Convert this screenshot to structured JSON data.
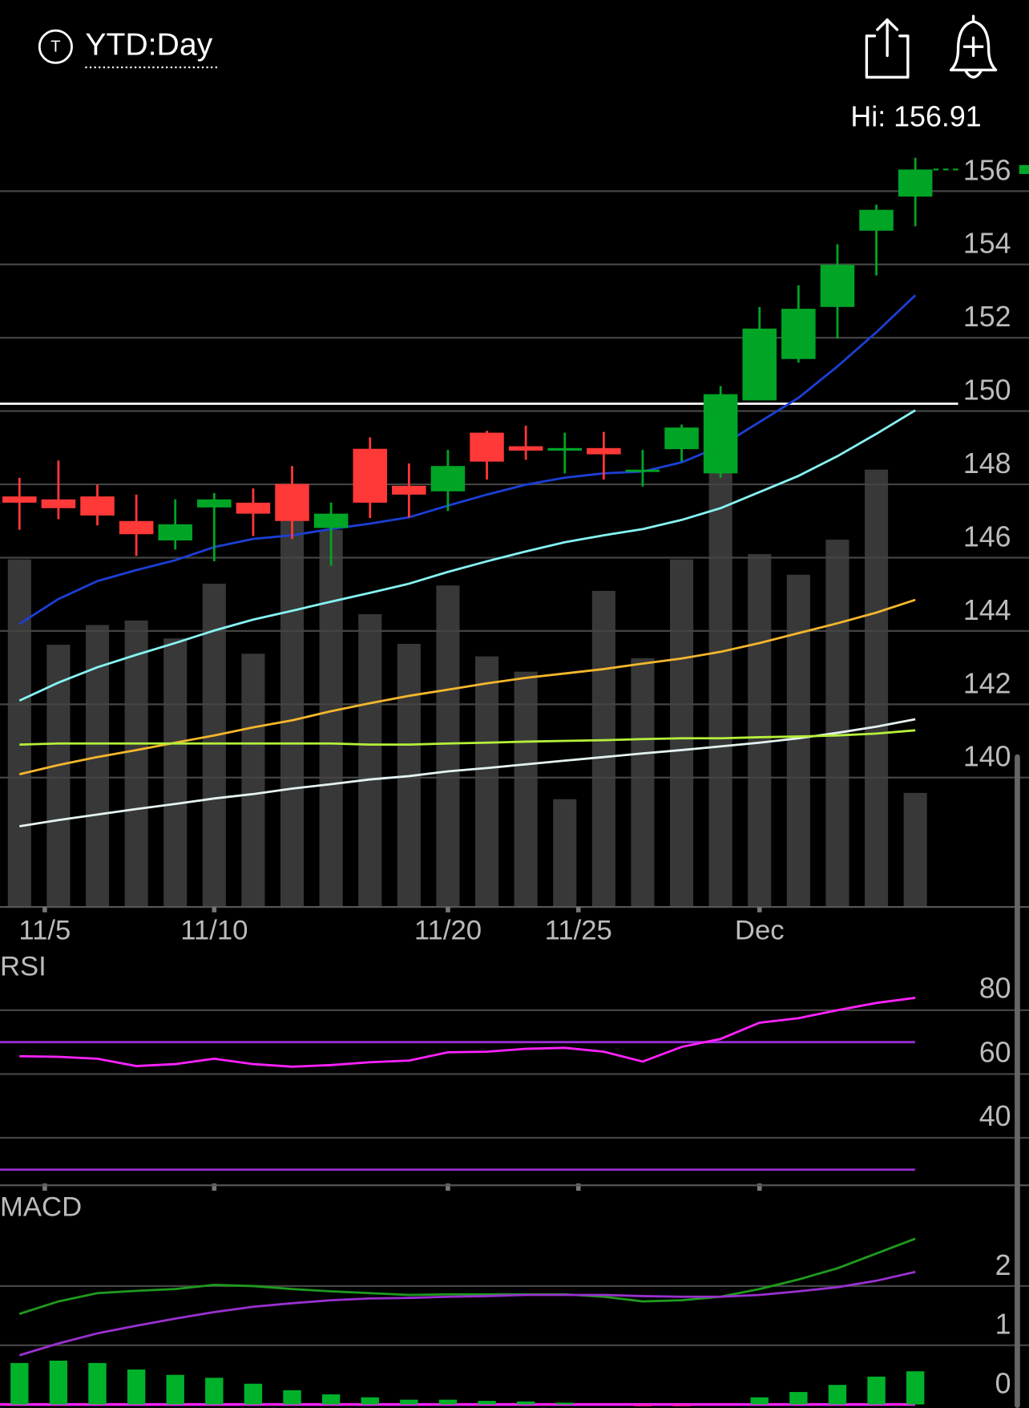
{
  "header": {
    "title": "YTD:Day"
  },
  "chart_data": [
    {
      "type": "candlestick",
      "annotation": "Hi: 156.91",
      "categories": [
        null,
        null,
        null,
        null,
        null,
        null,
        null,
        null,
        null,
        null,
        null,
        null,
        null,
        null,
        null,
        null,
        null,
        null,
        null,
        null,
        null,
        null,
        null,
        null
      ],
      "xlim": [
        -0.5,
        23.5
      ],
      "xticks": [
        {
          "value": 0.65,
          "label": "11/5"
        },
        {
          "value": 5,
          "label": "11/10"
        },
        {
          "value": 11,
          "label": "11/20"
        },
        {
          "value": 14.35,
          "label": "11/25"
        },
        {
          "value": 19,
          "label": "Dec"
        }
      ],
      "open": [
        147.67,
        147.59,
        147.67,
        147.0,
        146.47,
        147.37,
        147.5,
        148.01,
        146.81,
        148.97,
        147.96,
        147.81,
        149.41,
        149.04,
        148.92,
        148.99,
        148.35,
        148.96,
        148.3,
        150.29,
        151.42,
        152.84,
        154.92,
        155.85
      ],
      "high": [
        148.18,
        148.65,
        147.99,
        147.72,
        147.59,
        147.76,
        147.89,
        148.5,
        147.5,
        149.28,
        148.57,
        148.94,
        149.46,
        149.6,
        149.41,
        149.43,
        148.94,
        149.63,
        150.68,
        152.84,
        153.43,
        154.55,
        155.63,
        156.91
      ],
      "low": [
        146.76,
        147.05,
        146.88,
        146.05,
        146.22,
        145.9,
        146.59,
        146.51,
        145.78,
        147.08,
        147.1,
        147.27,
        148.13,
        148.67,
        148.3,
        148.13,
        147.94,
        148.62,
        148.18,
        150.29,
        151.32,
        151.98,
        153.7,
        155.04
      ],
      "close": [
        147.5,
        147.35,
        147.15,
        146.64,
        146.91,
        147.59,
        147.2,
        147.0,
        147.2,
        147.5,
        147.72,
        148.5,
        148.62,
        148.92,
        148.99,
        148.82,
        148.4,
        149.55,
        150.46,
        152.25,
        152.79,
        153.99,
        155.49,
        156.59
      ],
      "up_color": "#00a526",
      "down_color": "#ff3838",
      "volume": [
        387,
        292,
        314,
        319,
        299,
        360,
        282,
        430,
        420,
        326,
        293,
        358,
        279,
        262,
        120,
        352,
        277,
        387,
        495,
        393,
        370,
        409,
        487,
        127
      ],
      "volume_lim": [
        0,
        860
      ],
      "volume_color": "#383838",
      "overlays": [
        {
          "color": "#1c3fd6",
          "values": [
            144.19,
            144.87,
            145.36,
            145.66,
            145.93,
            146.29,
            146.51,
            146.61,
            146.78,
            146.93,
            147.1,
            147.42,
            147.72,
            147.99,
            148.18,
            148.3,
            148.35,
            148.6,
            149.04,
            149.7,
            150.36,
            151.22,
            152.15,
            153.16
          ]
        },
        {
          "color": "#86f4f2",
          "values": [
            142.1,
            142.59,
            143.01,
            143.35,
            143.67,
            144.01,
            144.31,
            144.55,
            144.8,
            145.04,
            145.29,
            145.61,
            145.9,
            146.17,
            146.42,
            146.61,
            146.78,
            147.03,
            147.35,
            147.79,
            148.23,
            148.77,
            149.38,
            150.02
          ]
        },
        {
          "color": "#f4b72c",
          "values": [
            140.09,
            140.34,
            140.56,
            140.75,
            140.95,
            141.15,
            141.37,
            141.56,
            141.81,
            142.03,
            142.23,
            142.4,
            142.57,
            142.72,
            142.84,
            142.96,
            143.11,
            143.25,
            143.43,
            143.67,
            143.94,
            144.21,
            144.5,
            144.85
          ]
        },
        {
          "color": "#e4f2f2",
          "values": [
            138.67,
            138.84,
            138.99,
            139.14,
            139.28,
            139.43,
            139.55,
            139.7,
            139.82,
            139.95,
            140.04,
            140.17,
            140.26,
            140.36,
            140.46,
            140.56,
            140.66,
            140.75,
            140.85,
            140.95,
            141.07,
            141.22,
            141.39,
            141.59
          ]
        },
        {
          "color": "#b6f03a",
          "values": [
            140.9,
            140.93,
            140.93,
            140.93,
            140.93,
            140.93,
            140.93,
            140.93,
            140.93,
            140.9,
            140.9,
            140.93,
            140.95,
            140.98,
            141.0,
            141.02,
            141.05,
            141.07,
            141.07,
            141.1,
            141.12,
            141.15,
            141.2,
            141.29
          ]
        }
      ],
      "level": 150.2,
      "level_color": "#ffffff",
      "ylim": [
        136.47,
        157.54
      ],
      "yticks": [
        140,
        142,
        144,
        146,
        148,
        150,
        152,
        154,
        156
      ],
      "grid": true
    },
    {
      "type": "line",
      "title": "RSI",
      "series": [
        {
          "color": "#ff22ff",
          "values": [
            65.6,
            65.4,
            64.8,
            62.5,
            63.1,
            64.8,
            63.1,
            62.3,
            62.8,
            63.7,
            64.2,
            66.8,
            67.0,
            67.9,
            68.2,
            67.0,
            63.9,
            68.5,
            71.0,
            76.1,
            77.5,
            80.0,
            82.3,
            83.9
          ]
        }
      ],
      "levels": [
        30,
        70
      ],
      "level_color": "#9a2fd4",
      "ylim": [
        25.1,
        96.9
      ],
      "yticks": [
        40,
        60,
        80
      ],
      "grid": true
    },
    {
      "type": "line",
      "title": "MACD",
      "series": [
        {
          "color": "#1f9a1f",
          "values": [
            1.53,
            1.74,
            1.88,
            1.92,
            1.95,
            2.02,
            2.0,
            1.95,
            1.91,
            1.88,
            1.85,
            1.86,
            1.86,
            1.86,
            1.86,
            1.82,
            1.74,
            1.76,
            1.82,
            1.95,
            2.11,
            2.3,
            2.55,
            2.8
          ]
        },
        {
          "color": "#9a30d0",
          "values": [
            0.83,
            1.03,
            1.2,
            1.33,
            1.45,
            1.56,
            1.65,
            1.71,
            1.76,
            1.79,
            1.8,
            1.82,
            1.83,
            1.85,
            1.85,
            1.85,
            1.83,
            1.82,
            1.82,
            1.85,
            1.91,
            1.98,
            2.09,
            2.24
          ]
        }
      ],
      "histogram": [
        0.7,
        0.74,
        0.7,
        0.59,
        0.5,
        0.45,
        0.35,
        0.24,
        0.17,
        0.12,
        0.08,
        0.08,
        0.06,
        0.05,
        0.03,
        0,
        -0.03,
        -0.03,
        0,
        0.12,
        0.21,
        0.33,
        0.47,
        0.56
      ],
      "histogram_colors": [
        "#00b22a",
        "#ff1fa8"
      ],
      "zero_color": "#ff22ff",
      "ylim": [
        -0.06,
        3.55
      ],
      "yticks": [
        0,
        1,
        2
      ],
      "grid": true
    }
  ]
}
